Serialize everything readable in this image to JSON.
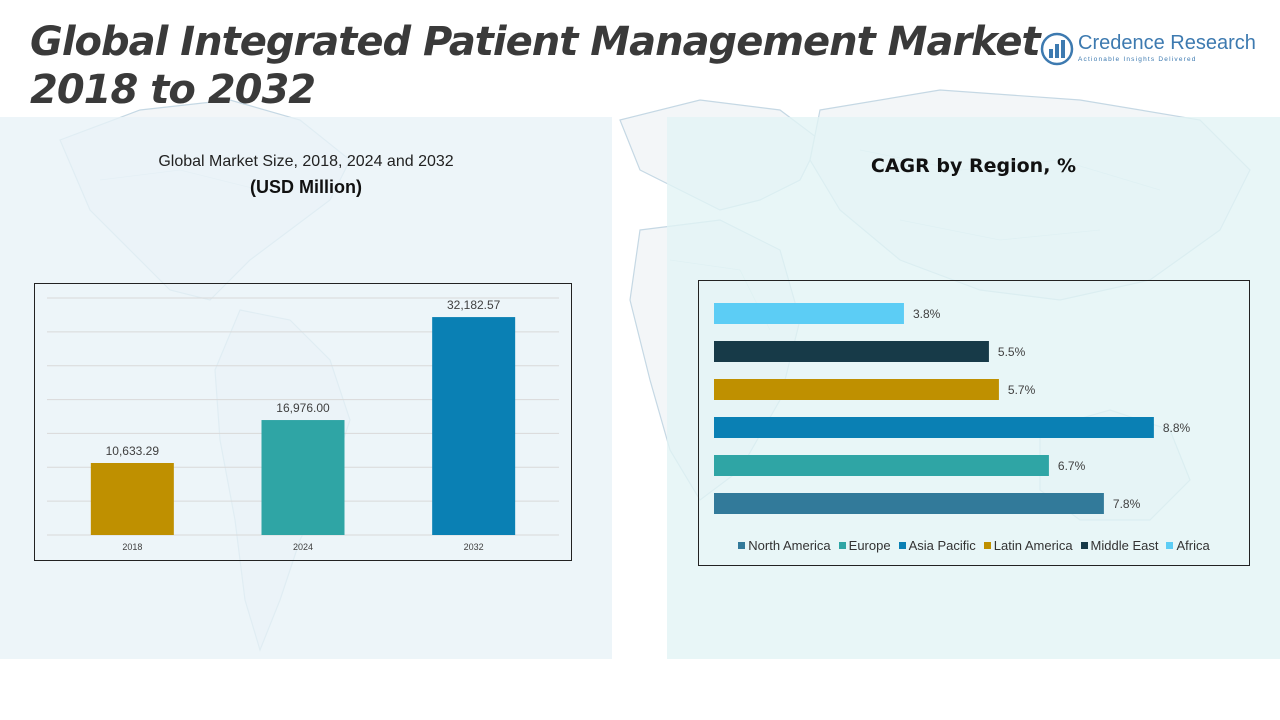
{
  "header": {
    "title_line1": "Global Integrated Patient Management Market",
    "title_line2": "2018 to 2032"
  },
  "logo": {
    "name": "Credence Research",
    "tagline": "Actionable Insights Delivered",
    "color": "#3d7ab0"
  },
  "left_panel": {
    "subtitle": "Global Market Size, 2018, 2024 and 2032",
    "unit": "(USD Million)"
  },
  "right_panel": {
    "title": "CAGR by Region, %"
  },
  "chart_data": [
    {
      "type": "bar",
      "title": "Global Market Size, 2018, 2024 and 2032",
      "ylabel": "(USD Million)",
      "categories": [
        "2018",
        "2024",
        "2032"
      ],
      "values": [
        10633.29,
        16976.0,
        32182.57
      ],
      "value_labels": [
        "10,633.29",
        "16,976.00",
        "32,182.57"
      ],
      "colors": [
        "#bf9000",
        "#2fa5a5",
        "#0a80b4"
      ],
      "ylim": [
        0,
        35000
      ],
      "grid": true
    },
    {
      "type": "bar",
      "orientation": "horizontal",
      "title": "CAGR by Region, %",
      "categories": [
        "Africa",
        "Middle East",
        "Latin America",
        "Asia Pacific",
        "Europe",
        "North America"
      ],
      "values": [
        3.8,
        5.5,
        5.7,
        8.8,
        6.7,
        7.8
      ],
      "value_labels": [
        "3.8%",
        "5.5%",
        "5.7%",
        "8.8%",
        "6.7%",
        "7.8%"
      ],
      "colors": [
        "#5ccdf5",
        "#173a48",
        "#bf9000",
        "#0a80b4",
        "#2fa5a5",
        "#327a9a"
      ],
      "xlim": [
        0,
        9
      ],
      "legend": {
        "position": "bottom",
        "entries": [
          "North America",
          "Europe",
          "Asia Pacific",
          "Latin America",
          "Middle East",
          "Africa"
        ],
        "colors": [
          "#327a9a",
          "#2fa5a5",
          "#0a80b4",
          "#bf9000",
          "#173a48",
          "#5ccdf5"
        ]
      }
    }
  ]
}
